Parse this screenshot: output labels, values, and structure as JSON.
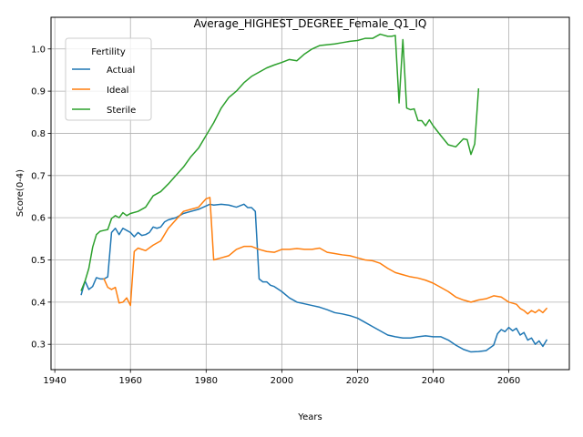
{
  "chart_data": {
    "type": "line",
    "title": "Average_HIGHEST_DEGREE_Female_Q1_IQ",
    "xlabel": "Years",
    "ylabel": "Score(0-4)",
    "xlim": [
      1939,
      2076
    ],
    "ylim": [
      0.24,
      1.075
    ],
    "xticks": [
      1940,
      1960,
      1980,
      2000,
      2020,
      2040,
      2060
    ],
    "xtick_labels": [
      "1940",
      "1960",
      "1980",
      "2000",
      "2020",
      "2040",
      "2060"
    ],
    "yticks": [
      0.3,
      0.4,
      0.5,
      0.6,
      0.7,
      0.8,
      0.9,
      1.0
    ],
    "ytick_labels": [
      "0.3",
      "0.4",
      "0.5",
      "0.6",
      "0.7",
      "0.8",
      "0.9",
      "1.0"
    ],
    "grid": true,
    "legend": {
      "title": "Fertility",
      "position": "top-left"
    },
    "series": [
      {
        "name": "Actual",
        "color": "#1f77b4",
        "x": [
          1947,
          1948,
          1949,
          1950,
          1951,
          1952,
          1953,
          1954,
          1955,
          1956,
          1957,
          1958,
          1959,
          1960,
          1961,
          1962,
          1963,
          1964,
          1965,
          1966,
          1967,
          1968,
          1969,
          1970,
          1972,
          1974,
          1976,
          1978,
          1980,
          1981,
          1982,
          1984,
          1986,
          1988,
          1990,
          1991,
          1992,
          1993,
          1994,
          1995,
          1996,
          1997,
          1998,
          2000,
          2002,
          2004,
          2006,
          2008,
          2010,
          2012,
          2014,
          2016,
          2018,
          2020,
          2022,
          2024,
          2026,
          2028,
          2030,
          2032,
          2034,
          2036,
          2038,
          2040,
          2042,
          2044,
          2046,
          2048,
          2050,
          2052,
          2054,
          2056,
          2057,
          2058,
          2059,
          2060,
          2061,
          2062,
          2063,
          2064,
          2065,
          2066,
          2067,
          2068,
          2069,
          2070
        ],
        "y": [
          0.418,
          0.45,
          0.43,
          0.437,
          0.458,
          0.455,
          0.455,
          0.46,
          0.565,
          0.575,
          0.56,
          0.575,
          0.57,
          0.565,
          0.555,
          0.565,
          0.558,
          0.56,
          0.565,
          0.578,
          0.575,
          0.578,
          0.59,
          0.595,
          0.6,
          0.61,
          0.615,
          0.62,
          0.628,
          0.632,
          0.63,
          0.632,
          0.63,
          0.625,
          0.632,
          0.624,
          0.624,
          0.615,
          0.455,
          0.448,
          0.448,
          0.44,
          0.437,
          0.425,
          0.41,
          0.4,
          0.396,
          0.392,
          0.388,
          0.382,
          0.375,
          0.372,
          0.368,
          0.362,
          0.352,
          0.342,
          0.332,
          0.322,
          0.318,
          0.315,
          0.315,
          0.318,
          0.32,
          0.318,
          0.318,
          0.31,
          0.298,
          0.288,
          0.282,
          0.283,
          0.285,
          0.298,
          0.325,
          0.335,
          0.33,
          0.34,
          0.332,
          0.338,
          0.322,
          0.328,
          0.31,
          0.315,
          0.3,
          0.308,
          0.295,
          0.31
        ]
      },
      {
        "name": "Ideal",
        "color": "#ff7f0e",
        "x": [
          1953,
          1954,
          1955,
          1956,
          1957,
          1958,
          1959,
          1960,
          1961,
          1962,
          1964,
          1966,
          1968,
          1970,
          1972,
          1974,
          1976,
          1978,
          1980,
          1981,
          1982,
          1984,
          1986,
          1988,
          1990,
          1992,
          1994,
          1996,
          1998,
          2000,
          2002,
          2004,
          2006,
          2008,
          2010,
          2012,
          2014,
          2016,
          2018,
          2020,
          2022,
          2024,
          2026,
          2028,
          2030,
          2032,
          2034,
          2036,
          2038,
          2040,
          2042,
          2044,
          2046,
          2048,
          2050,
          2052,
          2054,
          2056,
          2058,
          2060,
          2062,
          2063,
          2064,
          2065,
          2066,
          2067,
          2068,
          2069,
          2070
        ],
        "y": [
          0.455,
          0.435,
          0.43,
          0.435,
          0.398,
          0.4,
          0.41,
          0.392,
          0.52,
          0.528,
          0.522,
          0.535,
          0.545,
          0.575,
          0.595,
          0.615,
          0.62,
          0.625,
          0.645,
          0.648,
          0.5,
          0.505,
          0.51,
          0.525,
          0.532,
          0.532,
          0.525,
          0.52,
          0.518,
          0.525,
          0.525,
          0.527,
          0.525,
          0.525,
          0.528,
          0.518,
          0.515,
          0.512,
          0.51,
          0.505,
          0.5,
          0.498,
          0.492,
          0.48,
          0.47,
          0.465,
          0.46,
          0.457,
          0.452,
          0.445,
          0.435,
          0.425,
          0.412,
          0.405,
          0.4,
          0.405,
          0.408,
          0.415,
          0.412,
          0.4,
          0.395,
          0.385,
          0.38,
          0.372,
          0.38,
          0.375,
          0.382,
          0.375,
          0.385
        ]
      },
      {
        "name": "Sterile",
        "color": "#2ca02c",
        "x": [
          1947,
          1948,
          1949,
          1950,
          1951,
          1952,
          1953,
          1954,
          1955,
          1956,
          1957,
          1958,
          1959,
          1960,
          1962,
          1964,
          1966,
          1968,
          1970,
          1972,
          1974,
          1976,
          1978,
          1980,
          1982,
          1984,
          1986,
          1988,
          1990,
          1992,
          1994,
          1996,
          1998,
          2000,
          2002,
          2004,
          2006,
          2008,
          2010,
          2012,
          2014,
          2016,
          2018,
          2020,
          2022,
          2024,
          2026,
          2028,
          2029,
          2030,
          2031,
          2032,
          2033,
          2034,
          2035,
          2036,
          2037,
          2038,
          2039,
          2040,
          2042,
          2044,
          2046,
          2048,
          2049,
          2050,
          2051,
          2052
        ],
        "y": [
          0.428,
          0.45,
          0.48,
          0.53,
          0.56,
          0.568,
          0.57,
          0.572,
          0.598,
          0.605,
          0.6,
          0.612,
          0.605,
          0.61,
          0.615,
          0.625,
          0.652,
          0.662,
          0.68,
          0.7,
          0.72,
          0.745,
          0.765,
          0.795,
          0.825,
          0.86,
          0.885,
          0.9,
          0.92,
          0.935,
          0.945,
          0.955,
          0.962,
          0.968,
          0.975,
          0.972,
          0.988,
          1.0,
          1.008,
          1.01,
          1.012,
          1.015,
          1.018,
          1.02,
          1.025,
          1.025,
          1.035,
          1.03,
          1.03,
          1.032,
          0.872,
          1.022,
          0.86,
          0.856,
          0.858,
          0.83,
          0.83,
          0.818,
          0.832,
          0.818,
          0.795,
          0.773,
          0.768,
          0.787,
          0.785,
          0.75,
          0.775,
          0.905
        ]
      }
    ]
  }
}
